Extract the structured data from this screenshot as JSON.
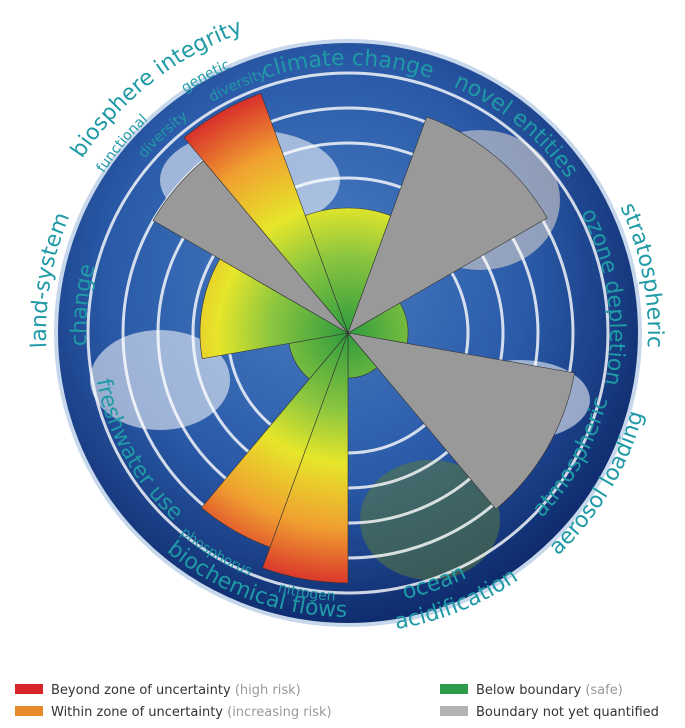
{
  "labels": [
    "biosphere integrity",
    "functional",
    "diversity",
    "genetic",
    "diversity",
    "climate change",
    "novel entities",
    "stratospheric",
    "ozone depletion",
    "atmospheric",
    "aerosol loading",
    "ocean",
    "acidification",
    "biochemical flows",
    "phosphorus",
    "nitrogen",
    "freshwater use",
    "land-system",
    "change"
  ],
  "legend": [
    {
      "label": "Beyond zone of uncertainty",
      "note": "(high risk)"
    },
    {
      "label": "Within zone of uncertainty",
      "note": "(increasing risk)"
    },
    {
      "label": "Below boundary",
      "note": "(safe)"
    },
    {
      "label": "Boundary not yet quantified",
      "note": ""
    }
  ]
}
